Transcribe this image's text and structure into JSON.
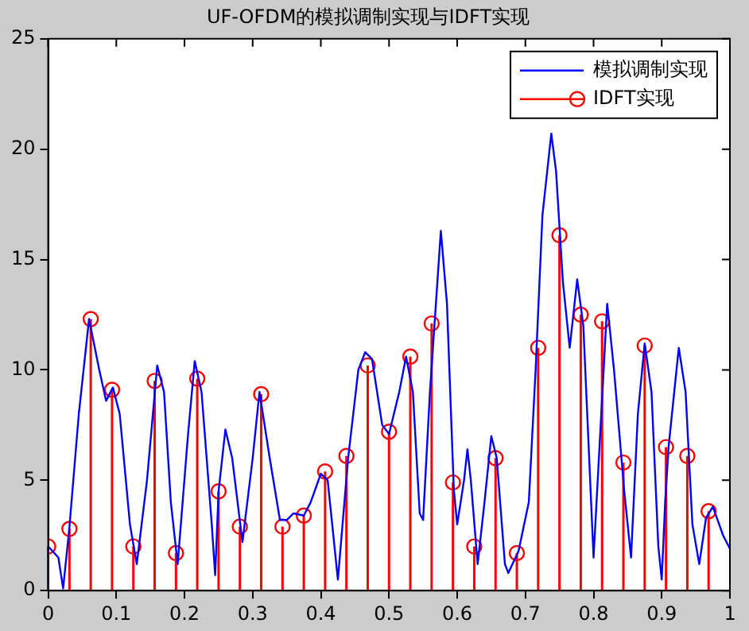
{
  "chart_data": {
    "type": "line",
    "title": "UF-OFDM的模拟调制实现与IDFT实现",
    "xlim": [
      0,
      1
    ],
    "xticks": [
      0,
      0.1,
      0.2,
      0.3,
      0.4,
      0.5,
      0.6,
      0.7,
      0.8,
      0.9,
      1
    ],
    "ylim": [
      0,
      25
    ],
    "yticks": [
      0,
      5,
      10,
      15,
      20,
      25
    ],
    "grid": false,
    "legend": "top right",
    "series": [
      {
        "name": "模拟调制实现",
        "type": "line",
        "color": "#0000ff",
        "marker": "none",
        "x": [
          0,
          0.015,
          0.022,
          0.031,
          0.045,
          0.06,
          0.075,
          0.085,
          0.095,
          0.105,
          0.12,
          0.13,
          0.145,
          0.16,
          0.17,
          0.18,
          0.19,
          0.205,
          0.215,
          0.225,
          0.24,
          0.245,
          0.25,
          0.26,
          0.27,
          0.285,
          0.3,
          0.31,
          0.325,
          0.34,
          0.35,
          0.36,
          0.375,
          0.385,
          0.4,
          0.41,
          0.425,
          0.44,
          0.455,
          0.465,
          0.475,
          0.49,
          0.5,
          0.515,
          0.525,
          0.535,
          0.545,
          0.55,
          0.56,
          0.576,
          0.585,
          0.595,
          0.6,
          0.61,
          0.615,
          0.62,
          0.63,
          0.64,
          0.65,
          0.658,
          0.67,
          0.675,
          0.69,
          0.705,
          0.715,
          0.725,
          0.738,
          0.745,
          0.755,
          0.765,
          0.776,
          0.785,
          0.8,
          0.82,
          0.83,
          0.845,
          0.855,
          0.865,
          0.875,
          0.885,
          0.895,
          0.9,
          0.905,
          0.91,
          0.925,
          0.935,
          0.945,
          0.955,
          0.965,
          0.975,
          0.99,
          1
        ],
        "values": [
          2,
          1.5,
          0.1,
          2.8,
          8,
          12.3,
          10,
          8.6,
          9.2,
          8,
          3,
          1.2,
          5,
          10.2,
          9,
          4,
          1.2,
          7,
          10.4,
          9,
          3,
          0.7,
          4.5,
          7.3,
          6,
          2.2,
          6,
          9,
          6,
          3.2,
          3.2,
          3.5,
          3.4,
          4,
          5.3,
          5,
          0.5,
          6,
          10,
          10.8,
          10.5,
          7.5,
          7.1,
          9,
          10.6,
          9,
          3.5,
          3.2,
          9,
          16.3,
          13,
          4.6,
          3,
          5,
          6.4,
          5,
          1.2,
          4,
          7,
          6,
          1.2,
          0.8,
          1.8,
          4,
          10,
          17,
          20.7,
          19,
          14,
          11,
          14.1,
          12,
          1.5,
          13,
          10,
          4.5,
          1.5,
          8,
          11.2,
          9,
          2,
          0.5,
          4,
          6.5,
          11,
          9,
          3,
          1.2,
          3.3,
          3.8,
          2.5,
          1.9
        ]
      },
      {
        "name": "IDFT实现",
        "type": "lollipop",
        "color": "#ff0000",
        "marker": "circle",
        "x": [
          0,
          0.03125,
          0.0625,
          0.09375,
          0.125,
          0.15625,
          0.1875,
          0.21875,
          0.25,
          0.28125,
          0.3125,
          0.34375,
          0.375,
          0.40625,
          0.4375,
          0.46875,
          0.5,
          0.53125,
          0.5625,
          0.59375,
          0.625,
          0.65625,
          0.6875,
          0.71875,
          0.75,
          0.78125,
          0.8125,
          0.84375,
          0.875,
          0.90625,
          0.9375,
          0.96875
        ],
        "values": [
          2,
          2.8,
          12.3,
          9.1,
          2,
          9.5,
          1.7,
          9.6,
          4.5,
          2.9,
          8.9,
          2.9,
          3.4,
          5.4,
          6.1,
          10.2,
          7.2,
          10.6,
          12.1,
          4.9,
          2,
          6,
          1.7,
          11,
          16.1,
          12.5,
          12.2,
          5.8,
          11.1,
          6.5,
          6.1,
          3.6
        ]
      }
    ]
  }
}
